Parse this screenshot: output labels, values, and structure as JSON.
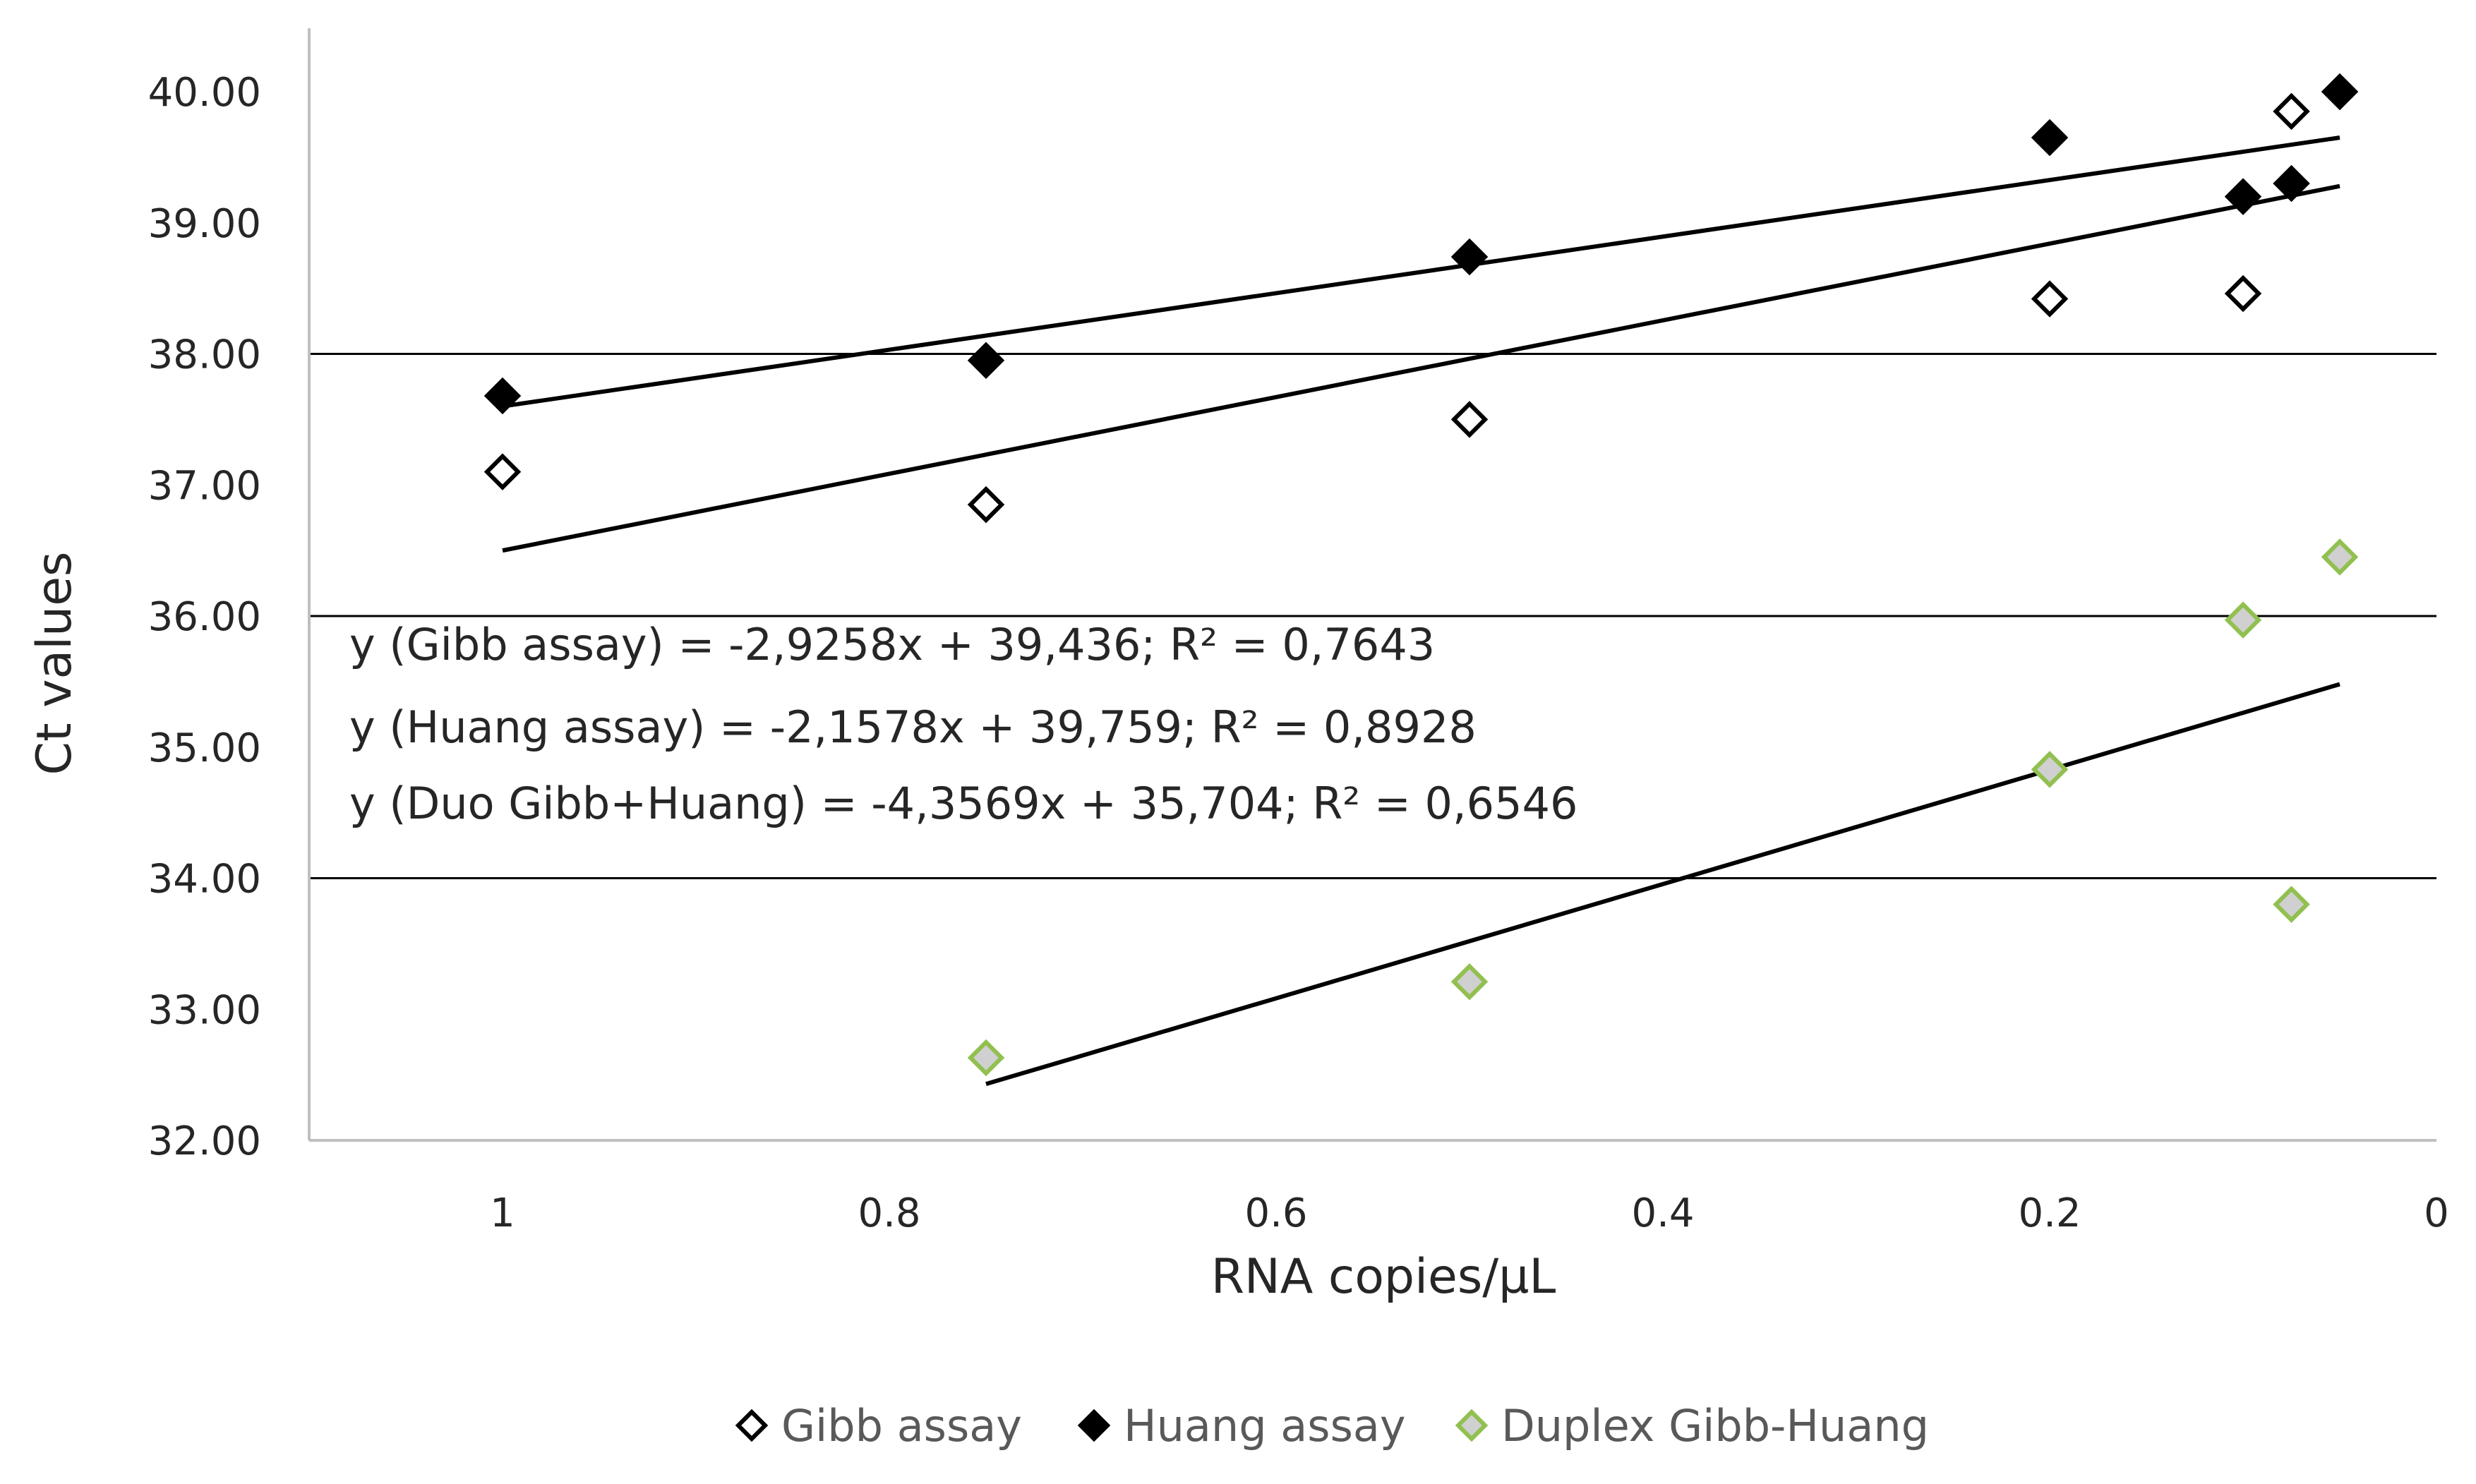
{
  "chart_data": {
    "type": "scatter",
    "title": "",
    "xlabel": "RNA copies/µL",
    "ylabel": "Ct values",
    "x_reversed": true,
    "xlim": [
      0,
      1.1
    ],
    "ylim": [
      32,
      40.5
    ],
    "x_ticks": [
      {
        "value": 1,
        "label": "1"
      },
      {
        "value": 0.8,
        "label": "0.8"
      },
      {
        "value": 0.6,
        "label": "0.6"
      },
      {
        "value": 0.4,
        "label": "0.4"
      },
      {
        "value": 0.2,
        "label": "0.2"
      },
      {
        "value": 0,
        "label": "0"
      }
    ],
    "y_ticks": [
      {
        "value": 32,
        "label": "32.00"
      },
      {
        "value": 33,
        "label": "33.00"
      },
      {
        "value": 34,
        "label": "34.00"
      },
      {
        "value": 35,
        "label": "35.00"
      },
      {
        "value": 36,
        "label": "36.00"
      },
      {
        "value": 37,
        "label": "37.00"
      },
      {
        "value": 38,
        "label": "38.00"
      },
      {
        "value": 39,
        "label": "39.00"
      },
      {
        "value": 40,
        "label": "40.00"
      }
    ],
    "gridlines_y": [
      34,
      36,
      38
    ],
    "series": [
      {
        "name": "Gibb assay",
        "marker": "diamond-open",
        "fill": "#ffffff",
        "stroke": "#000000",
        "points": [
          {
            "x": 1,
            "y": 37.1
          },
          {
            "x": 0.75,
            "y": 36.85
          },
          {
            "x": 0.5,
            "y": 37.5
          },
          {
            "x": 0.2,
            "y": 38.42
          },
          {
            "x": 0.1,
            "y": 38.46
          },
          {
            "x": 0.075,
            "y": 39.85
          }
        ],
        "trendline": {
          "x_from": 1,
          "x_to": 0.05,
          "y_from": 36.5,
          "y_to": 39.28
        }
      },
      {
        "name": "Huang assay",
        "marker": "diamond-filled",
        "fill": "#000000",
        "stroke": "#000000",
        "points": [
          {
            "x": 1,
            "y": 37.68
          },
          {
            "x": 0.75,
            "y": 37.95
          },
          {
            "x": 0.5,
            "y": 38.74
          },
          {
            "x": 0.2,
            "y": 39.65
          },
          {
            "x": 0.1,
            "y": 39.2
          },
          {
            "x": 0.075,
            "y": 39.3
          },
          {
            "x": 0.05,
            "y": 40.0
          }
        ],
        "trendline": {
          "x_from": 1,
          "x_to": 0.05,
          "y_from": 37.6,
          "y_to": 39.65
        }
      },
      {
        "name": "Duplex Gibb-Huang",
        "marker": "diamond-shaded",
        "fill": "#d0d0d0",
        "stroke": "#92c050",
        "points": [
          {
            "x": 0.75,
            "y": 32.63
          },
          {
            "x": 0.5,
            "y": 33.21
          },
          {
            "x": 0.2,
            "y": 34.83
          },
          {
            "x": 0.1,
            "y": 35.97
          },
          {
            "x": 0.075,
            "y": 33.8
          },
          {
            "x": 0.05,
            "y": 36.45
          }
        ],
        "trendline": {
          "x_from": 0.75,
          "x_to": 0.05,
          "y_from": 32.43,
          "y_to": 35.48
        }
      }
    ],
    "annotations": [
      "y (Gibb assay) = -2,9258x + 39,436; R² = 0,7643",
      "y (Huang assay) = -2,1578x + 39,759; R² = 0,8928",
      "y (Duo Gibb+Huang) = -4,3569x + 35,704; R² = 0,6546"
    ],
    "legend": {
      "position": "bottom",
      "entries": [
        "Gibb assay",
        "Huang assay",
        "Duplex Gibb-Huang"
      ]
    },
    "colors": {
      "axis": "#bfbfbf",
      "grid": "#000000",
      "trendline": "#000000",
      "text": "#262626",
      "legend_text": "#595959"
    }
  }
}
